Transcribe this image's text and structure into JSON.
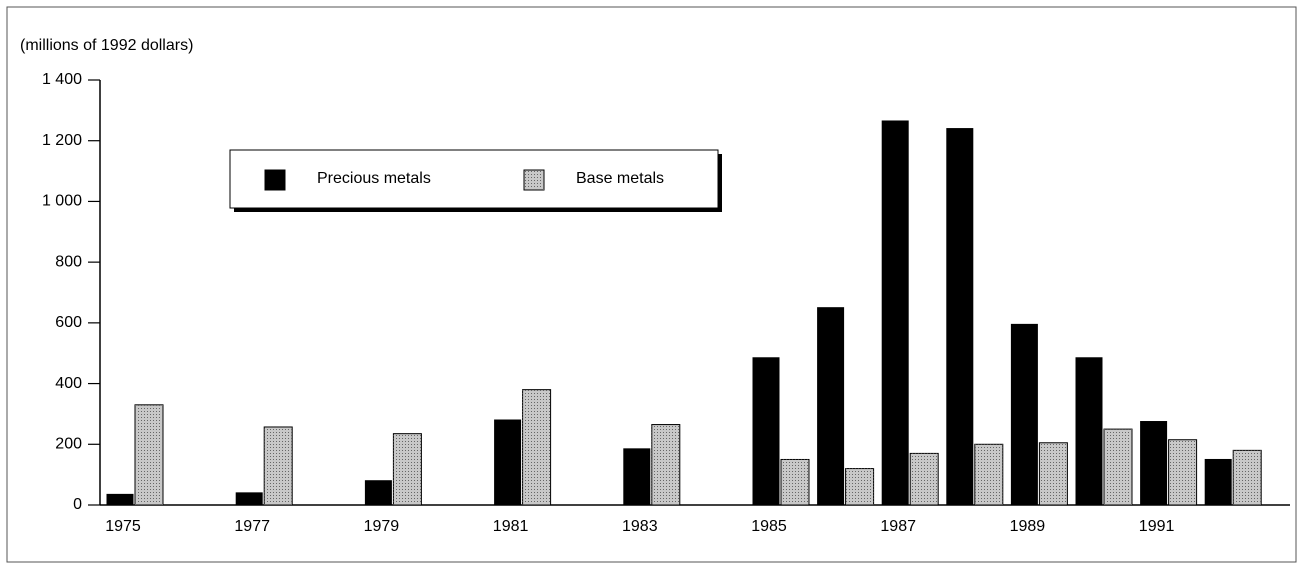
{
  "chart_data": {
    "type": "bar",
    "y_axis_label": "(millions of 1992 dollars)",
    "categories": [
      "1975",
      null,
      "1977",
      null,
      "1979",
      null,
      "1981",
      null,
      "1983",
      null,
      "1985",
      null,
      "1987",
      null,
      "1989",
      null,
      "1991",
      null
    ],
    "series": [
      {
        "name": "Precious metals",
        "color": "#000000",
        "values": [
          35,
          null,
          40,
          null,
          80,
          null,
          280,
          null,
          185,
          null,
          485,
          650,
          1265,
          1240,
          595,
          485,
          275,
          150
        ]
      },
      {
        "name": "Base metals",
        "color": "#c8c8c8",
        "values": [
          330,
          null,
          257,
          null,
          235,
          null,
          380,
          null,
          265,
          null,
          150,
          120,
          170,
          200,
          205,
          250,
          215,
          180
        ]
      }
    ],
    "ylim": [
      0,
      1400
    ],
    "yticks": [
      0,
      200,
      400,
      600,
      800,
      {
        "value": 1000,
        "label": "1 000"
      },
      {
        "value": 1200,
        "label": "1 200"
      },
      {
        "value": 1400,
        "label": "1 400"
      }
    ],
    "grid": false
  }
}
